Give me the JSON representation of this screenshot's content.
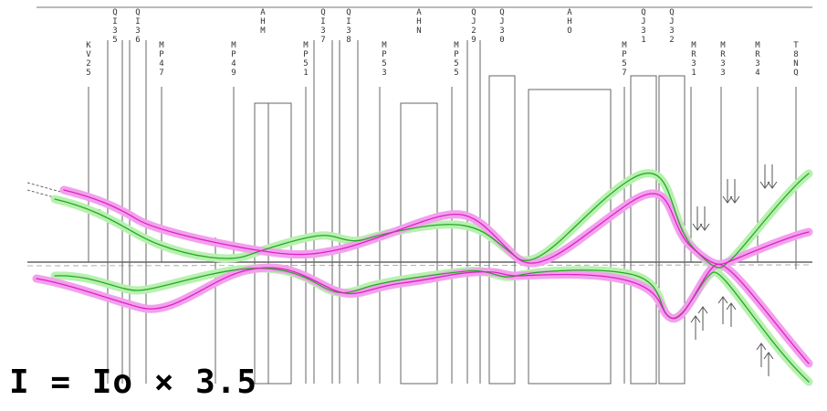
{
  "formula": "I = Io × 3.5",
  "colors": {
    "green": "#22aa22",
    "green_band": "#b8f0b0",
    "magenta": "#e020c0",
    "magenta_band": "#f2a0ee",
    "ink": "#555555"
  },
  "elements": [
    {
      "id": "kv25",
      "label": "KV25"
    },
    {
      "id": "qi35",
      "label": "QI35"
    },
    {
      "id": "qi36",
      "label": "QI36"
    },
    {
      "id": "mp47",
      "label": "MP47"
    },
    {
      "id": "mp49",
      "label": "MP49"
    },
    {
      "id": "ahm",
      "label": "AHM"
    },
    {
      "id": "mp51",
      "label": "MP51"
    },
    {
      "id": "qi37",
      "label": "QI37"
    },
    {
      "id": "qi38",
      "label": "QI38"
    },
    {
      "id": "mp53",
      "label": "MP53"
    },
    {
      "id": "ahn",
      "label": "AHN"
    },
    {
      "id": "mp55",
      "label": "MP55"
    },
    {
      "id": "qj29",
      "label": "QJ29"
    },
    {
      "id": "qj30",
      "label": "QJ30"
    },
    {
      "id": "aho",
      "label": "AHO"
    },
    {
      "id": "mp57",
      "label": "MP57"
    },
    {
      "id": "qj31",
      "label": "QJ31"
    },
    {
      "id": "qj32",
      "label": "QJ32"
    },
    {
      "id": "mr31",
      "label": "MR31"
    },
    {
      "id": "mr33",
      "label": "MR33"
    },
    {
      "id": "mr34",
      "label": "MR34"
    },
    {
      "id": "t8nq",
      "label": "T8NQ"
    }
  ]
}
